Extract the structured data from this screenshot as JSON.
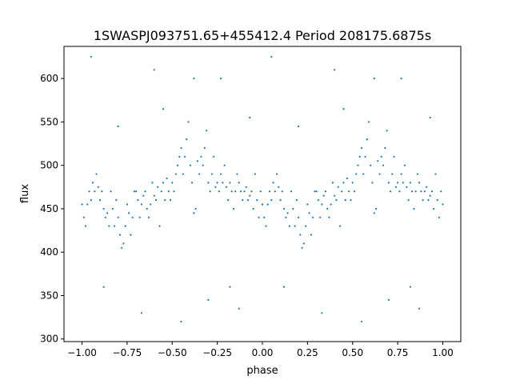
{
  "chart_data": {
    "type": "scatter",
    "title": "1SWASPJ093751.65+455412.4 Period 208175.6875s",
    "xlabel": "phase",
    "ylabel": "flux",
    "xlim": [
      -1.1,
      1.1
    ],
    "ylim": [
      297,
      637
    ],
    "x_ticks": [
      -1.0,
      -0.75,
      -0.5,
      -0.25,
      0.0,
      0.25,
      0.5,
      0.75,
      1.0
    ],
    "x_tick_labels": [
      "−1.00",
      "−0.75",
      "−0.50",
      "−0.25",
      "0.00",
      "0.25",
      "0.50",
      "0.75",
      "1.00"
    ],
    "y_ticks": [
      300,
      350,
      400,
      450,
      500,
      550,
      600
    ],
    "y_tick_labels": [
      "300",
      "350",
      "400",
      "450",
      "500",
      "550",
      "600"
    ],
    "grid": false,
    "legend": "none",
    "point_color": "#1f77b4",
    "series": [
      {
        "values_note": "phase-folded light curve; same pattern repeats for phase in [-1,0] and [0,1]",
        "points": [
          [
            0.0,
            455
          ],
          [
            0.01,
            440
          ],
          [
            0.02,
            430
          ],
          [
            0.03,
            455
          ],
          [
            0.04,
            470
          ],
          [
            0.05,
            460
          ],
          [
            0.06,
            480
          ],
          [
            0.07,
            470
          ],
          [
            0.08,
            490
          ],
          [
            0.09,
            475
          ],
          [
            0.1,
            460
          ],
          [
            0.11,
            470
          ],
          [
            0.12,
            450
          ],
          [
            0.13,
            440
          ],
          [
            0.14,
            445
          ],
          [
            0.15,
            430
          ],
          [
            0.16,
            470
          ],
          [
            0.17,
            450
          ],
          [
            0.18,
            430
          ],
          [
            0.19,
            460
          ],
          [
            0.2,
            440
          ],
          [
            0.21,
            420
          ],
          [
            0.22,
            405
          ],
          [
            0.23,
            410
          ],
          [
            0.24,
            430
          ],
          [
            0.25,
            455
          ],
          [
            0.26,
            445
          ],
          [
            0.27,
            420
          ],
          [
            0.28,
            440
          ],
          [
            0.29,
            470
          ],
          [
            0.3,
            470
          ],
          [
            0.31,
            460
          ],
          [
            0.32,
            440
          ],
          [
            0.33,
            455
          ],
          [
            0.34,
            465
          ],
          [
            0.35,
            470
          ],
          [
            0.36,
            450
          ],
          [
            0.37,
            440
          ],
          [
            0.38,
            455
          ],
          [
            0.39,
            480
          ],
          [
            0.4,
            465
          ],
          [
            0.41,
            460
          ],
          [
            0.42,
            475
          ],
          [
            0.43,
            430
          ],
          [
            0.44,
            470
          ],
          [
            0.45,
            480
          ],
          [
            0.46,
            460
          ],
          [
            0.47,
            485
          ],
          [
            0.48,
            470
          ],
          [
            0.49,
            460
          ],
          [
            0.5,
            480
          ],
          [
            0.51,
            470
          ],
          [
            0.52,
            490
          ],
          [
            0.53,
            500
          ],
          [
            0.54,
            510
          ],
          [
            0.55,
            520
          ],
          [
            0.56,
            490
          ],
          [
            0.57,
            510
          ],
          [
            0.58,
            530
          ],
          [
            0.59,
            550
          ],
          [
            0.6,
            500
          ],
          [
            0.61,
            480
          ],
          [
            0.62,
            445
          ],
          [
            0.63,
            450
          ],
          [
            0.64,
            505
          ],
          [
            0.65,
            490
          ],
          [
            0.66,
            510
          ],
          [
            0.67,
            500
          ],
          [
            0.68,
            520
          ],
          [
            0.69,
            540
          ],
          [
            0.7,
            480
          ],
          [
            0.71,
            470
          ],
          [
            0.72,
            490
          ],
          [
            0.73,
            510
          ],
          [
            0.74,
            475
          ],
          [
            0.75,
            480
          ],
          [
            0.76,
            470
          ],
          [
            0.77,
            490
          ],
          [
            0.78,
            480
          ],
          [
            0.79,
            500
          ],
          [
            0.8,
            475
          ],
          [
            0.81,
            460
          ],
          [
            0.82,
            480
          ],
          [
            0.83,
            470
          ],
          [
            0.84,
            450
          ],
          [
            0.85,
            470
          ],
          [
            0.86,
            490
          ],
          [
            0.87,
            480
          ],
          [
            0.88,
            470
          ],
          [
            0.89,
            460
          ],
          [
            0.9,
            470
          ],
          [
            0.91,
            475
          ],
          [
            0.92,
            460
          ],
          [
            0.93,
            465
          ],
          [
            0.94,
            470
          ],
          [
            0.95,
            450
          ],
          [
            0.96,
            490
          ],
          [
            0.97,
            460
          ],
          [
            0.98,
            440
          ],
          [
            0.99,
            470
          ],
          [
            1.0,
            455
          ],
          [
            0.05,
            625
          ],
          [
            0.62,
            600
          ],
          [
            0.4,
            610
          ],
          [
            0.77,
            600
          ],
          [
            0.33,
            330
          ],
          [
            0.55,
            320
          ],
          [
            0.87,
            335
          ],
          [
            0.12,
            360
          ],
          [
            0.2,
            545
          ],
          [
            0.82,
            360
          ],
          [
            0.7,
            345
          ],
          [
            0.45,
            565
          ],
          [
            0.93,
            555
          ]
        ]
      }
    ]
  }
}
